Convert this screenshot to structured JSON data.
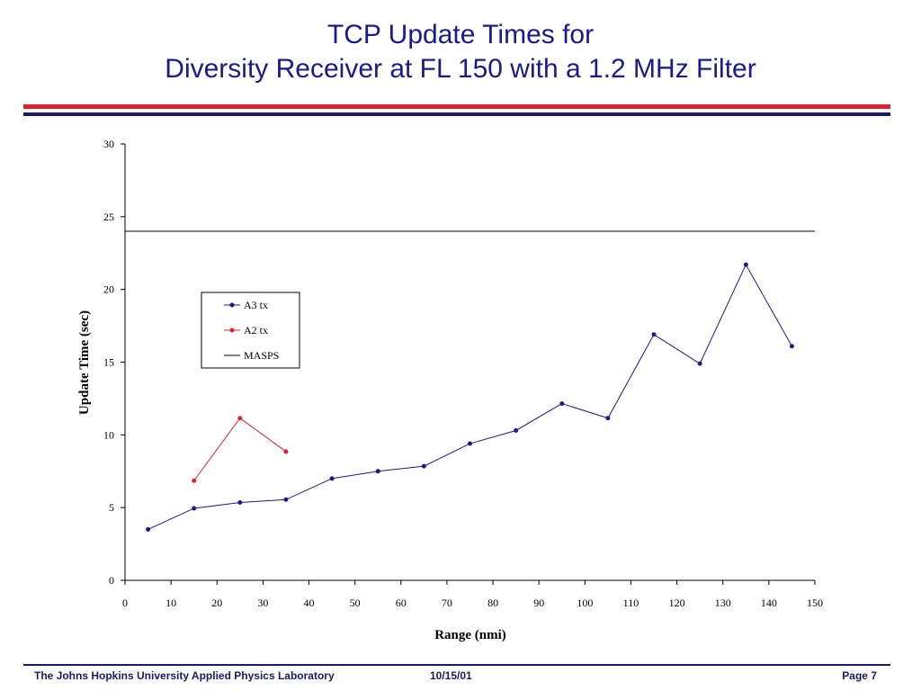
{
  "slide": {
    "title_line1": "TCP Update Times for",
    "title_line2": "Diversity Receiver at FL 150 with a 1.2 MHz Filter"
  },
  "footer": {
    "organization": "The Johns Hopkins University Applied Physics Laboratory",
    "date": "10/15/01",
    "page": "Page 7"
  },
  "colors": {
    "title": "#1a1a8c",
    "rule_red": "#e02030",
    "rule_navy": "#1a1a6e",
    "a3": "#1a1a8c",
    "a2": "#e02030",
    "masps": "#000000"
  },
  "chart_data": {
    "type": "line",
    "xlabel": "Range (nmi)",
    "ylabel": "Update Time (sec)",
    "xlim": [
      0,
      150
    ],
    "ylim": [
      0,
      30
    ],
    "xticks": [
      0,
      10,
      20,
      30,
      40,
      50,
      60,
      70,
      80,
      90,
      100,
      110,
      120,
      130,
      140,
      150
    ],
    "yticks": [
      0,
      5,
      10,
      15,
      20,
      25,
      30
    ],
    "grid": false,
    "legend_position": "upper-left",
    "series": [
      {
        "name": "A3 tx",
        "color": "#1a1a8c",
        "marker": "dot",
        "x": [
          5,
          15,
          25,
          35,
          45,
          55,
          65,
          75,
          85,
          95,
          105,
          115,
          125,
          135,
          145
        ],
        "y": [
          3.5,
          4.95,
          5.35,
          5.55,
          7.0,
          7.5,
          7.85,
          9.4,
          10.3,
          12.15,
          11.15,
          16.9,
          14.9,
          21.7,
          16.1
        ]
      },
      {
        "name": "A2 tx",
        "color": "#e02030",
        "marker": "dot",
        "x": [
          15,
          25,
          35
        ],
        "y": [
          6.85,
          11.15,
          8.85
        ]
      },
      {
        "name": "MASPS",
        "color": "#000000",
        "marker": "none",
        "x": [
          0,
          150
        ],
        "y": [
          24,
          24
        ]
      }
    ]
  }
}
